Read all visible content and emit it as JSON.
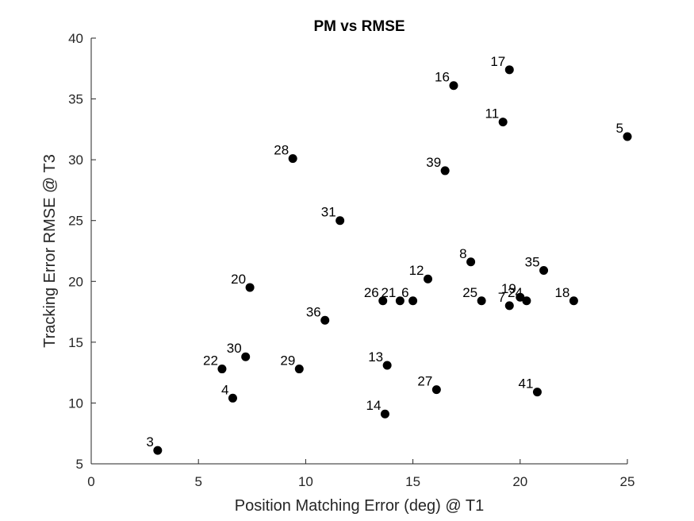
{
  "chart_data": {
    "type": "scatter",
    "title": "PM vs RMSE",
    "xlabel": "Position Matching Error (deg) @ T1",
    "ylabel": "Tracking Error RMSE @ T3",
    "xlim": [
      0,
      25
    ],
    "ylim": [
      5,
      40
    ],
    "xticks": [
      0,
      5,
      10,
      15,
      20,
      25
    ],
    "yticks": [
      5,
      10,
      15,
      20,
      25,
      30,
      35,
      40
    ],
    "grid": false,
    "points": [
      {
        "label": "3",
        "x": 3.1,
        "y": 6.1
      },
      {
        "label": "4",
        "x": 6.6,
        "y": 10.4
      },
      {
        "label": "22",
        "x": 6.1,
        "y": 12.8
      },
      {
        "label": "30",
        "x": 7.2,
        "y": 13.8
      },
      {
        "label": "20",
        "x": 7.4,
        "y": 19.5
      },
      {
        "label": "28",
        "x": 9.4,
        "y": 30.1
      },
      {
        "label": "29",
        "x": 9.7,
        "y": 12.8
      },
      {
        "label": "36",
        "x": 10.9,
        "y": 16.8
      },
      {
        "label": "31",
        "x": 11.6,
        "y": 25.0
      },
      {
        "label": "26",
        "x": 13.6,
        "y": 18.4
      },
      {
        "label": "14",
        "x": 13.7,
        "y": 9.1
      },
      {
        "label": "13",
        "x": 13.8,
        "y": 13.1
      },
      {
        "label": "21",
        "x": 14.4,
        "y": 18.4
      },
      {
        "label": "6",
        "x": 15.0,
        "y": 18.4
      },
      {
        "label": "12",
        "x": 15.7,
        "y": 20.2
      },
      {
        "label": "27",
        "x": 16.1,
        "y": 11.1
      },
      {
        "label": "39",
        "x": 16.5,
        "y": 29.1
      },
      {
        "label": "16",
        "x": 16.9,
        "y": 36.1
      },
      {
        "label": "8",
        "x": 17.7,
        "y": 21.6
      },
      {
        "label": "25",
        "x": 18.2,
        "y": 18.4
      },
      {
        "label": "11",
        "x": 19.2,
        "y": 33.1
      },
      {
        "label": "7",
        "x": 19.5,
        "y": 18.0
      },
      {
        "label": "17",
        "x": 19.5,
        "y": 37.4
      },
      {
        "label": "19",
        "x": 20.0,
        "y": 18.7
      },
      {
        "label": "24",
        "x": 20.3,
        "y": 18.4
      },
      {
        "label": "41",
        "x": 20.8,
        "y": 10.9
      },
      {
        "label": "35",
        "x": 21.1,
        "y": 20.9
      },
      {
        "label": "18",
        "x": 22.5,
        "y": 18.4
      },
      {
        "label": "5",
        "x": 25.0,
        "y": 31.9
      }
    ]
  }
}
